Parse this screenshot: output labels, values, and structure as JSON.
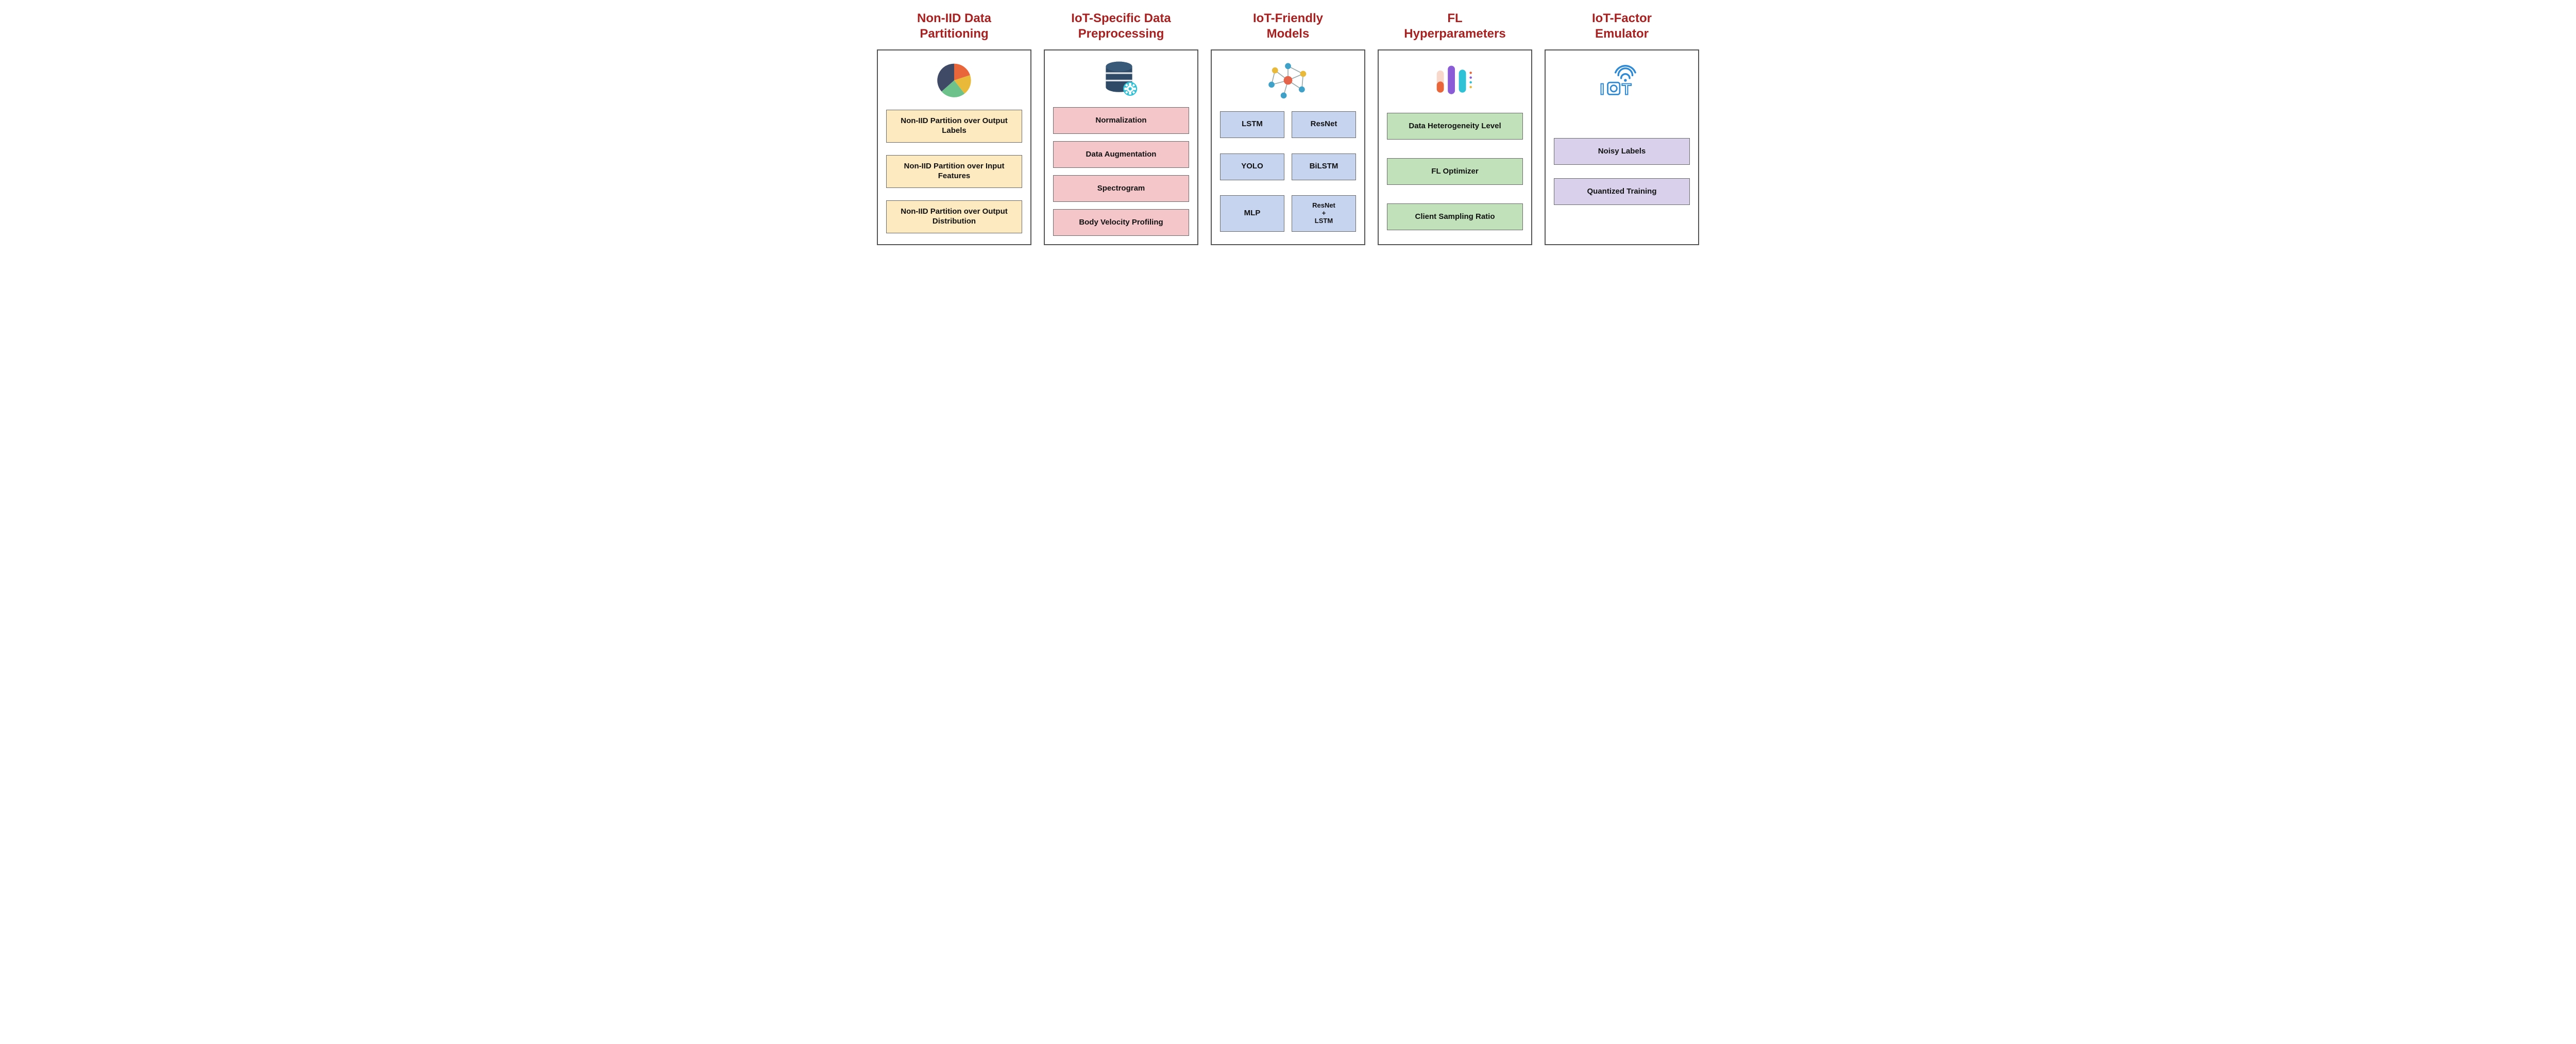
{
  "columns": [
    {
      "title": "Non-IID Data\nPartitioning",
      "icon": "pie-chart-icon",
      "item_color": "bg-yellow",
      "layout": "list",
      "items": [
        "Non-IID Partition over Output Labels",
        "Non-IID Partition over Input Features",
        "Non-IID Partition over Output Distribution"
      ]
    },
    {
      "title": "IoT-Specific Data\nPreprocessing",
      "icon": "database-gear-icon",
      "item_color": "bg-pink",
      "layout": "list",
      "items": [
        "Normalization",
        "Data Augmentation",
        "Spectrogram",
        "Body Velocity Profiling"
      ]
    },
    {
      "title": "IoT-Friendly\nModels",
      "icon": "network-graph-icon",
      "item_color": "bg-blue",
      "layout": "grid",
      "items": [
        "LSTM",
        "ResNet",
        "YOLO",
        "BiLSTM",
        "MLP",
        "ResNet\n+\nLSTM"
      ]
    },
    {
      "title": "FL\nHyperparameters",
      "icon": "sliders-icon",
      "item_color": "bg-green",
      "layout": "list",
      "items": [
        "Data Heterogeneity Level",
        "FL Optimizer",
        "Client Sampling Ratio"
      ]
    },
    {
      "title": "IoT-Factor\nEmulator",
      "icon": "iot-wifi-icon",
      "item_color": "bg-purple",
      "layout": "list",
      "items": [
        "Noisy Labels",
        "Quantized Training"
      ]
    }
  ],
  "colors": {
    "title": "#a82020",
    "panel_border": "#555555",
    "item_border": "#6a6a6a",
    "yellow": "#fdeac0",
    "pink": "#f4c6ca",
    "blue": "#c6d4ef",
    "green": "#c0e1b9",
    "purple": "#d9d1ec",
    "pie_slices": [
      "#3f4a66",
      "#e9663a",
      "#e9b93a",
      "#6cc28a"
    ],
    "db_body": "#2f4a66",
    "db_gear": "#2fc1d6",
    "net_nodes": [
      "#e3644a",
      "#e9b93a",
      "#3fa0c8",
      "#3fa0c8",
      "#3fa0c8",
      "#3fa0c8"
    ],
    "pills": [
      "#e9663a",
      "#8a5cd6",
      "#2fc1d6"
    ],
    "iot_stroke": "#2f8ad6"
  },
  "typography": {
    "title_fontsize": 24,
    "title_weight": "bold",
    "item_fontsize": 15,
    "item_weight": "bold",
    "font_family": "Arial"
  }
}
